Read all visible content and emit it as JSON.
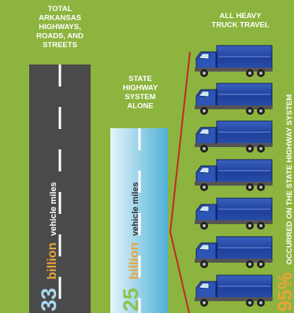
{
  "left": {
    "title_lines": [
      "TOTAL",
      "ARKANSAS",
      "HIGHWAYS,",
      "ROADS, AND",
      "STREETS"
    ],
    "number": "33",
    "unit": "billion",
    "label": "vehicle miles"
  },
  "middle": {
    "title_lines": [
      "STATE",
      "HIGHWAY",
      "SYSTEM",
      "ALONE"
    ],
    "number": "25",
    "unit": "billion",
    "label": "vehicle miles"
  },
  "right": {
    "title_lines": [
      "ALL HEAVY",
      "TRUCK TRAVEL"
    ],
    "percent": "95%",
    "label": "OCCURRED ON THE STATE HIGHWAY SYSTEM"
  }
}
